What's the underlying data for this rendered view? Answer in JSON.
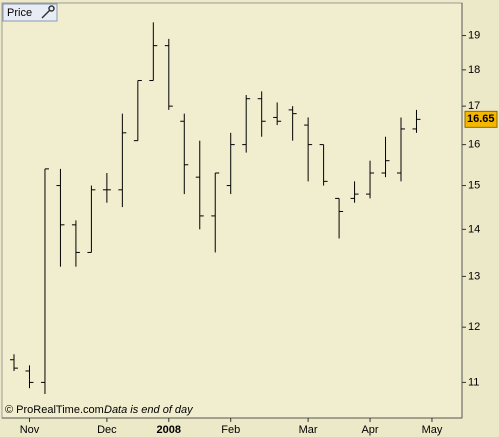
{
  "chart_data": {
    "type": "ohlc",
    "title": "Price",
    "footer": "© ProRealTime.com",
    "note": "Data is end of day",
    "categories": [
      null,
      "Nov",
      null,
      null,
      null,
      null,
      "Dec",
      null,
      null,
      null,
      "2008",
      null,
      null,
      null,
      "Feb",
      null,
      null,
      null,
      null,
      "Mar",
      null,
      null,
      null,
      "Apr",
      null,
      null,
      null,
      "May"
    ],
    "open": [
      11.4,
      11.2,
      11.0,
      15.0,
      14.1,
      13.5,
      14.9,
      14.9,
      16.1,
      17.7,
      18.7,
      16.6,
      15.2,
      14.3,
      15.0,
      16.0,
      17.2,
      16.7,
      16.9,
      16.5,
      16.0,
      14.7,
      14.7,
      14.8,
      15.3,
      15.3,
      16.4,
      null
    ],
    "high": [
      11.5,
      11.3,
      15.4,
      15.4,
      14.2,
      15.0,
      15.3,
      16.8,
      17.7,
      19.4,
      18.9,
      16.8,
      16.1,
      15.3,
      16.3,
      17.3,
      17.4,
      17.1,
      17.0,
      16.7,
      16.0,
      14.7,
      15.1,
      15.6,
      16.2,
      16.7,
      16.9,
      null
    ],
    "low": [
      11.2,
      10.9,
      10.8,
      13.2,
      13.2,
      13.5,
      14.6,
      14.5,
      16.1,
      17.7,
      16.9,
      14.8,
      14.0,
      13.5,
      14.8,
      15.8,
      16.2,
      16.5,
      16.1,
      15.1,
      15.0,
      13.8,
      14.6,
      14.7,
      15.2,
      15.1,
      16.3,
      null
    ],
    "close": [
      11.25,
      11.0,
      15.4,
      14.1,
      13.5,
      14.9,
      14.9,
      16.3,
      17.7,
      18.7,
      17.0,
      15.5,
      14.3,
      15.3,
      16.0,
      17.2,
      16.6,
      16.6,
      16.8,
      16.0,
      15.1,
      14.4,
      14.8,
      15.3,
      15.6,
      16.4,
      16.65,
      null
    ],
    "ylim": [
      10.4,
      20
    ],
    "yticks": [
      11,
      12,
      13,
      14,
      15,
      16,
      17,
      18,
      19
    ],
    "log_scale": true,
    "color": "#000000",
    "last_price_color": "#f5b800"
  }
}
